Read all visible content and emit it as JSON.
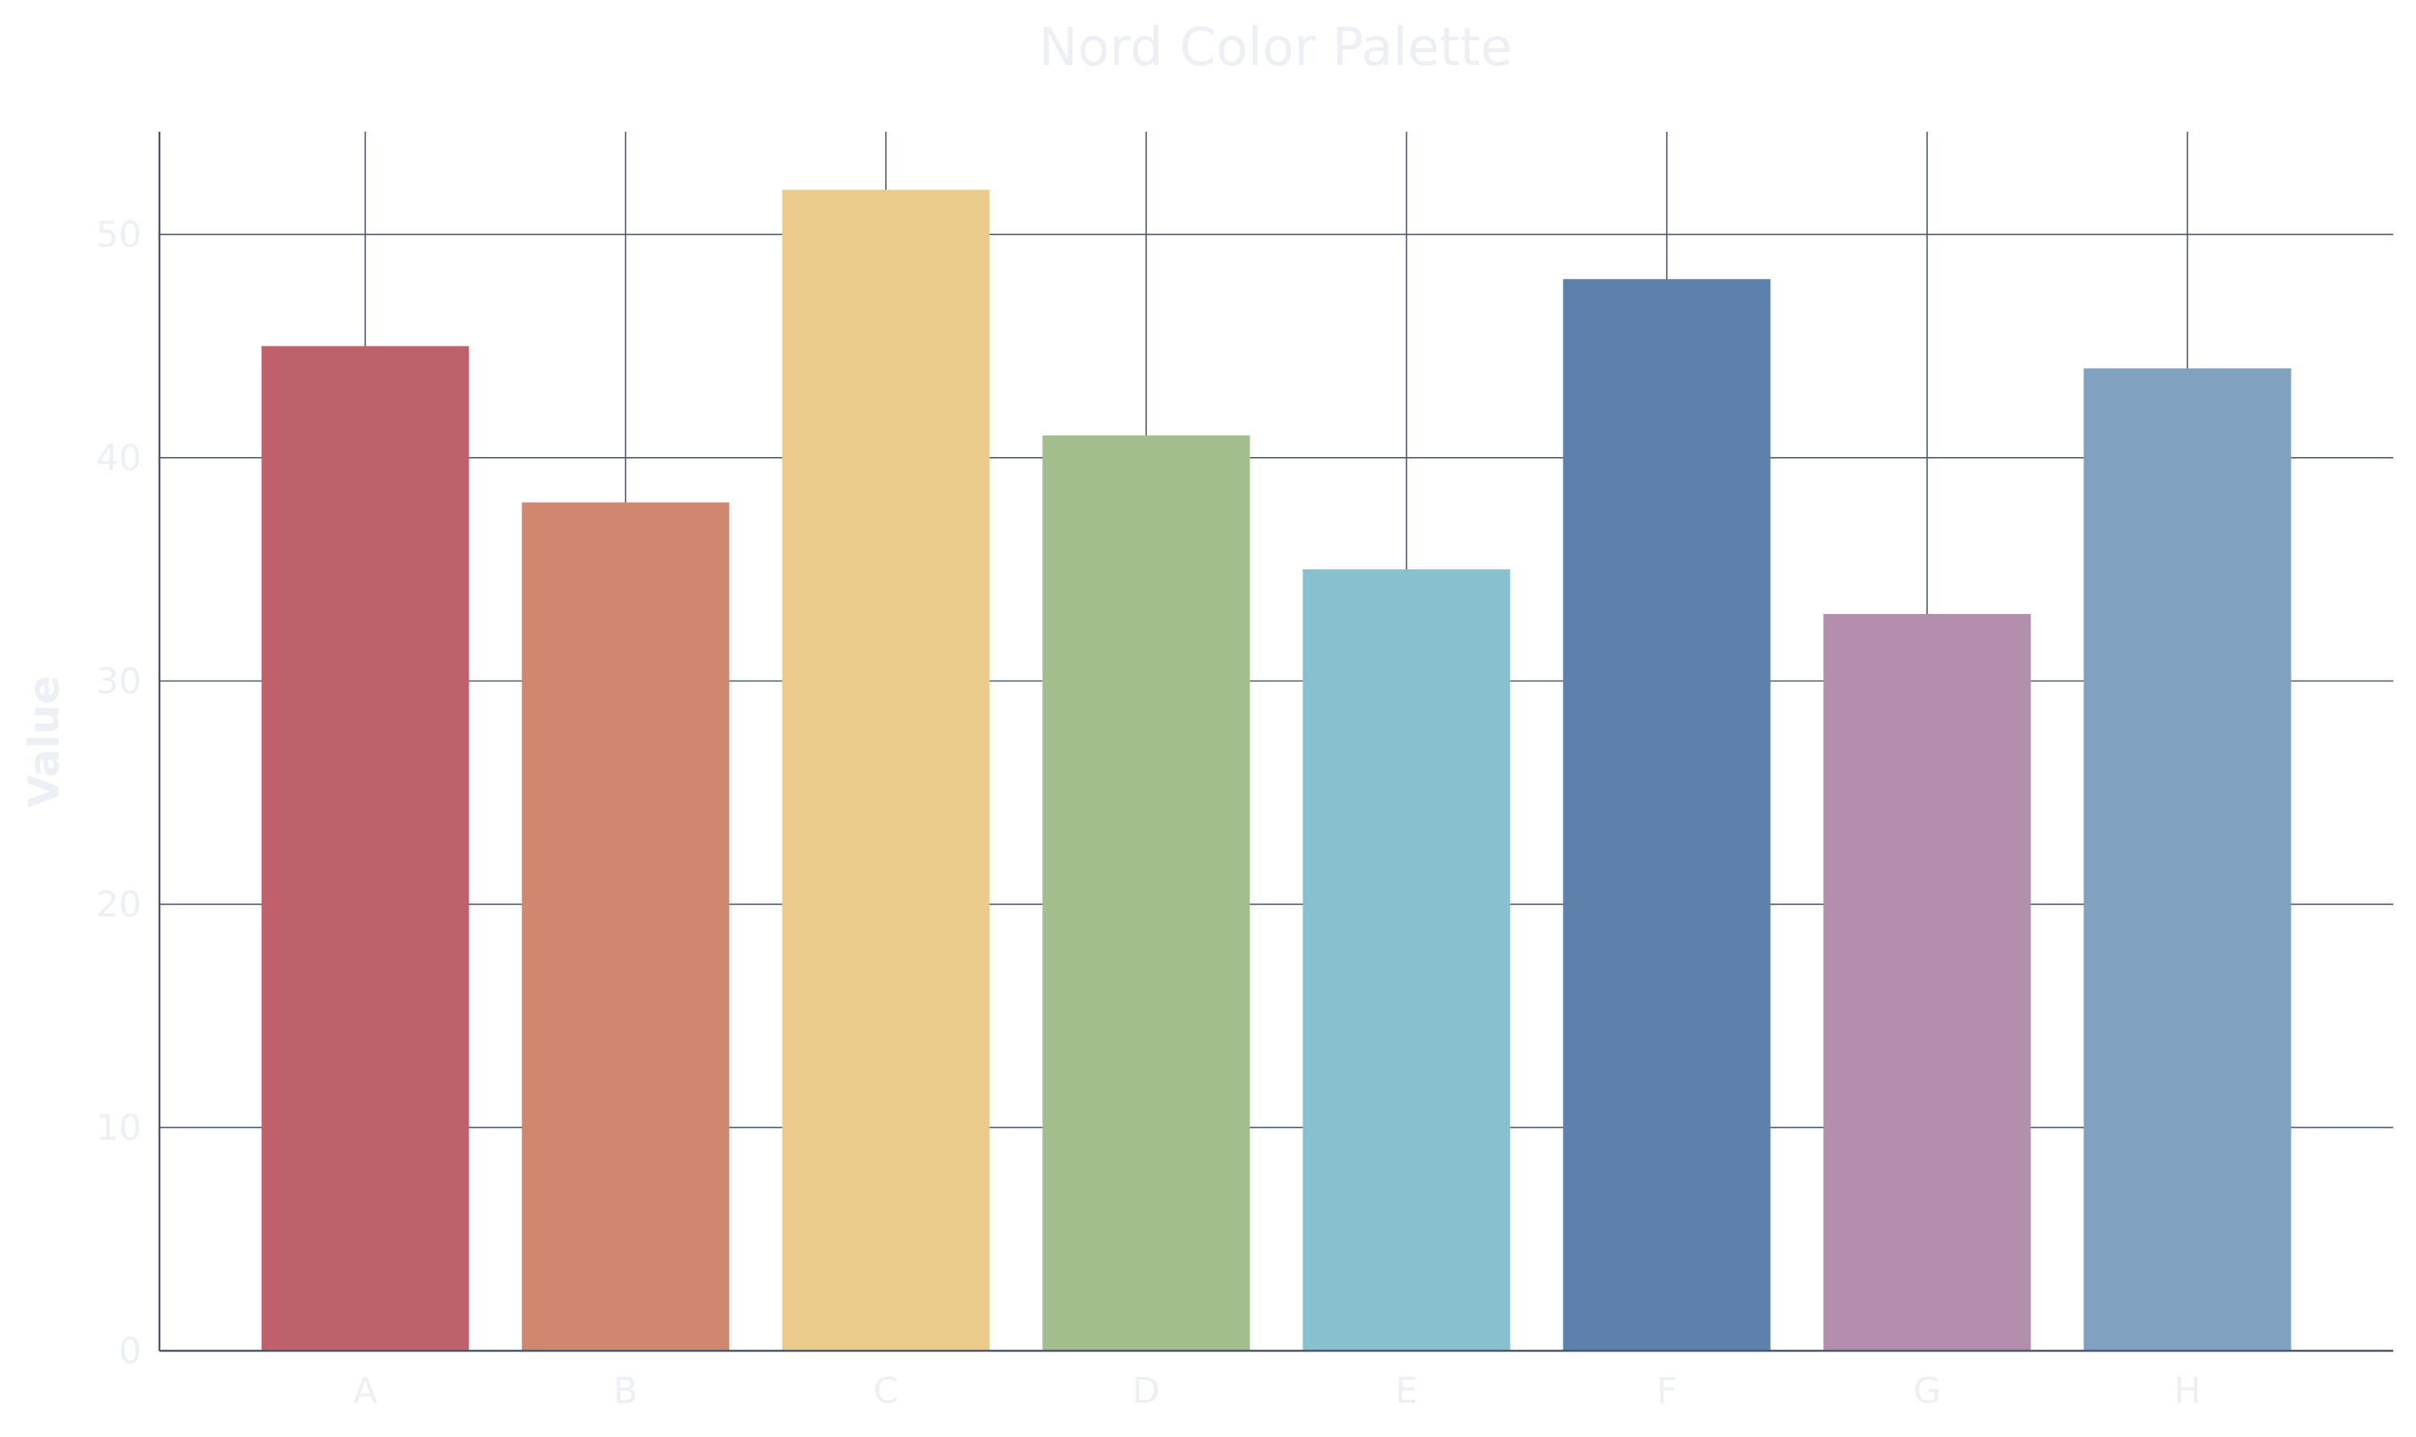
{
  "chart_data": {
    "type": "bar",
    "title": "Nord Color Palette",
    "xlabel": "",
    "ylabel": "Value",
    "categories": [
      "A",
      "B",
      "C",
      "D",
      "E",
      "F",
      "G",
      "H"
    ],
    "values": [
      45,
      38,
      52,
      41,
      35,
      48,
      33,
      44
    ],
    "colors": [
      "#bf616a",
      "#d08770",
      "#ebcb8b",
      "#a3be8c",
      "#88c0d0",
      "#5e81ac",
      "#b48ead",
      "#81a1c1"
    ],
    "ylim": [
      0,
      54.6
    ],
    "yticks": [
      0,
      10,
      20,
      30,
      40,
      50
    ],
    "grid": true,
    "legend": "none"
  }
}
